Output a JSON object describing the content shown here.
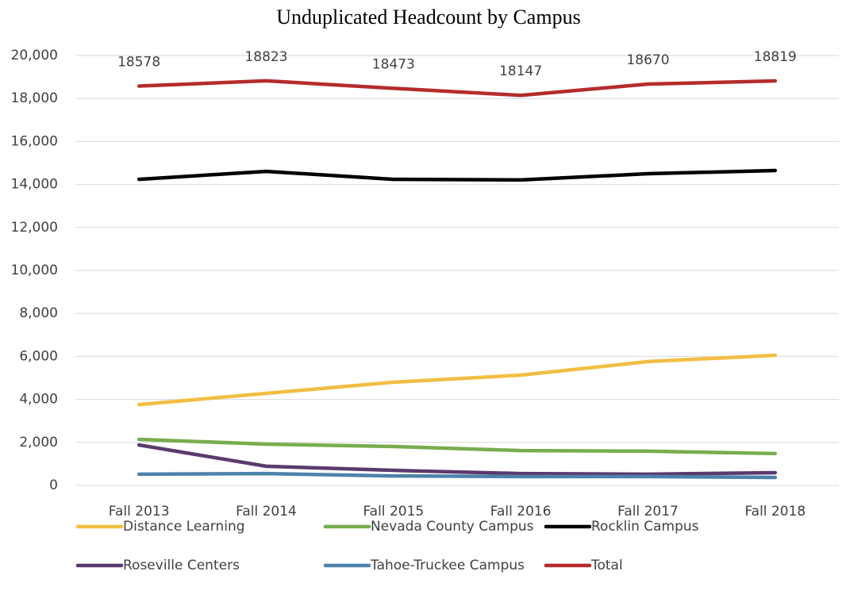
{
  "chart_data": {
    "type": "line",
    "title": "Unduplicated Headcount by Campus",
    "categories": [
      "Fall 2013",
      "Fall 2014",
      "Fall 2015",
      "Fall 2016",
      "Fall 2017",
      "Fall 2018"
    ],
    "series": [
      {
        "name": "Distance Learning",
        "color": "#f2be42",
        "values": [
          3760,
          4280,
          4800,
          5130,
          5760,
          6050
        ]
      },
      {
        "name": "Nevada County Campus",
        "color": "#78ad4f",
        "values": [
          2140,
          1920,
          1810,
          1620,
          1590,
          1480
        ]
      },
      {
        "name": "Rocklin Campus",
        "color": "#000000",
        "values": [
          14240,
          14610,
          14240,
          14210,
          14500,
          14650
        ]
      },
      {
        "name": "Roseville Centers",
        "color": "#5b3a6e",
        "values": [
          1880,
          890,
          700,
          550,
          520,
          590
        ]
      },
      {
        "name": "Tahoe-Truckee Campus",
        "color": "#4d82ab",
        "values": [
          520,
          550,
          440,
          410,
          410,
          370
        ]
      },
      {
        "name": "Total",
        "color": "#b52b2b",
        "values": [
          18578,
          18823,
          18473,
          18147,
          18670,
          18819
        ],
        "data_labels": true
      }
    ],
    "ylim": [
      0,
      20000
    ],
    "yticks": [
      0,
      {
        "value": 2000,
        "label": "2,000"
      },
      {
        "value": 4000,
        "label": "4,000"
      },
      {
        "value": 6000,
        "label": "6,000"
      },
      {
        "value": 8000,
        "label": "8,000"
      },
      {
        "value": 10000,
        "label": "10,000"
      },
      {
        "value": 12000,
        "label": "12,000"
      },
      {
        "value": 14000,
        "label": "14,000"
      },
      {
        "value": 16000,
        "label": "16,000"
      },
      {
        "value": 18000,
        "label": "18,000"
      },
      {
        "value": 20000,
        "label": "20,000"
      }
    ],
    "grid": true,
    "legend": "bottom"
  }
}
